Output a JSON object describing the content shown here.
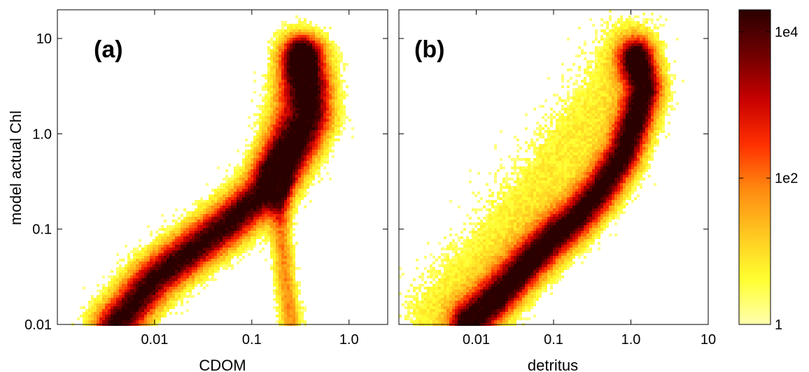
{
  "chart_data": {
    "type": "heatmap",
    "ylabel": "model actual Chl",
    "y_scale": "log",
    "ylim": [
      0.01,
      20
    ],
    "y_ticks": [
      {
        "value": 10,
        "label": "10"
      },
      {
        "value": 1,
        "label": "1.0"
      },
      {
        "value": 0.1,
        "label": "0.1"
      },
      {
        "value": 0.01,
        "label": "0.01"
      }
    ],
    "panels": [
      {
        "label": "(a)",
        "xlabel": "CDOM",
        "x_scale": "log",
        "xlim": [
          0.001,
          2.5
        ],
        "x_ticks": [
          {
            "value": 0.01,
            "label": "0.01"
          },
          {
            "value": 0.1,
            "label": "0.1"
          },
          {
            "value": 1,
            "label": "1.0"
          }
        ],
        "density_ridges": [
          {
            "name": "main",
            "points": [
              [
                0.004,
                0.01
              ],
              [
                0.01,
                0.03
              ],
              [
                0.03,
                0.07
              ],
              [
                0.06,
                0.12
              ],
              [
                0.12,
                0.22
              ],
              [
                0.2,
                0.4
              ],
              [
                0.3,
                0.8
              ],
              [
                0.4,
                1.5
              ],
              [
                0.4,
                3
              ],
              [
                0.35,
                6
              ]
            ],
            "width": 0.17,
            "weight": 1.0
          },
          {
            "name": "upper-branch",
            "points": [
              [
                0.15,
                0.5
              ],
              [
                0.2,
                1.5
              ],
              [
                0.25,
                4
              ],
              [
                0.3,
                8
              ]
            ],
            "width": 0.14,
            "weight": 0.35
          },
          {
            "name": "lower-branch",
            "points": [
              [
                0.2,
                0.3
              ],
              [
                0.2,
                0.1
              ],
              [
                0.22,
                0.03
              ],
              [
                0.25,
                0.011
              ]
            ],
            "width": 0.08,
            "weight": 0.45
          }
        ]
      },
      {
        "label": "(b)",
        "xlabel": "detritus",
        "x_scale": "log",
        "xlim": [
          0.001,
          10
        ],
        "x_ticks": [
          {
            "value": 0.01,
            "label": "0.01"
          },
          {
            "value": 0.1,
            "label": "0.1"
          },
          {
            "value": 1,
            "label": "1.0"
          },
          {
            "value": 10,
            "label": "10"
          }
        ],
        "density_ridges": [
          {
            "name": "main",
            "points": [
              [
                0.008,
                0.01
              ],
              [
                0.02,
                0.02
              ],
              [
                0.05,
                0.045
              ],
              [
                0.1,
                0.08
              ],
              [
                0.2,
                0.13
              ],
              [
                0.4,
                0.25
              ],
              [
                0.8,
                0.6
              ],
              [
                1.2,
                1.5
              ],
              [
                1.5,
                3
              ],
              [
                1.2,
                6
              ]
            ],
            "width": 0.17,
            "weight": 1.0
          },
          {
            "name": "diffuse-upper",
            "points": [
              [
                0.003,
                0.012
              ],
              [
                0.01,
                0.04
              ],
              [
                0.05,
                0.2
              ],
              [
                0.15,
                0.7
              ],
              [
                0.4,
                2
              ],
              [
                0.8,
                6
              ]
            ],
            "width": 0.32,
            "weight": 0.22
          }
        ]
      }
    ],
    "colorbar": {
      "scale": "log",
      "range": [
        1,
        20000
      ],
      "colormap": "hot-reversed",
      "colors": [
        "#ffffb0",
        "#ffff30",
        "#ffc820",
        "#ff8a10",
        "#ff3000",
        "#c80000",
        "#700000",
        "#2a0000"
      ],
      "ticks": [
        {
          "value": 1,
          "label": "1"
        },
        {
          "value": 100,
          "label": "1e2"
        },
        {
          "value": 10000,
          "label": "1e4"
        }
      ]
    }
  }
}
